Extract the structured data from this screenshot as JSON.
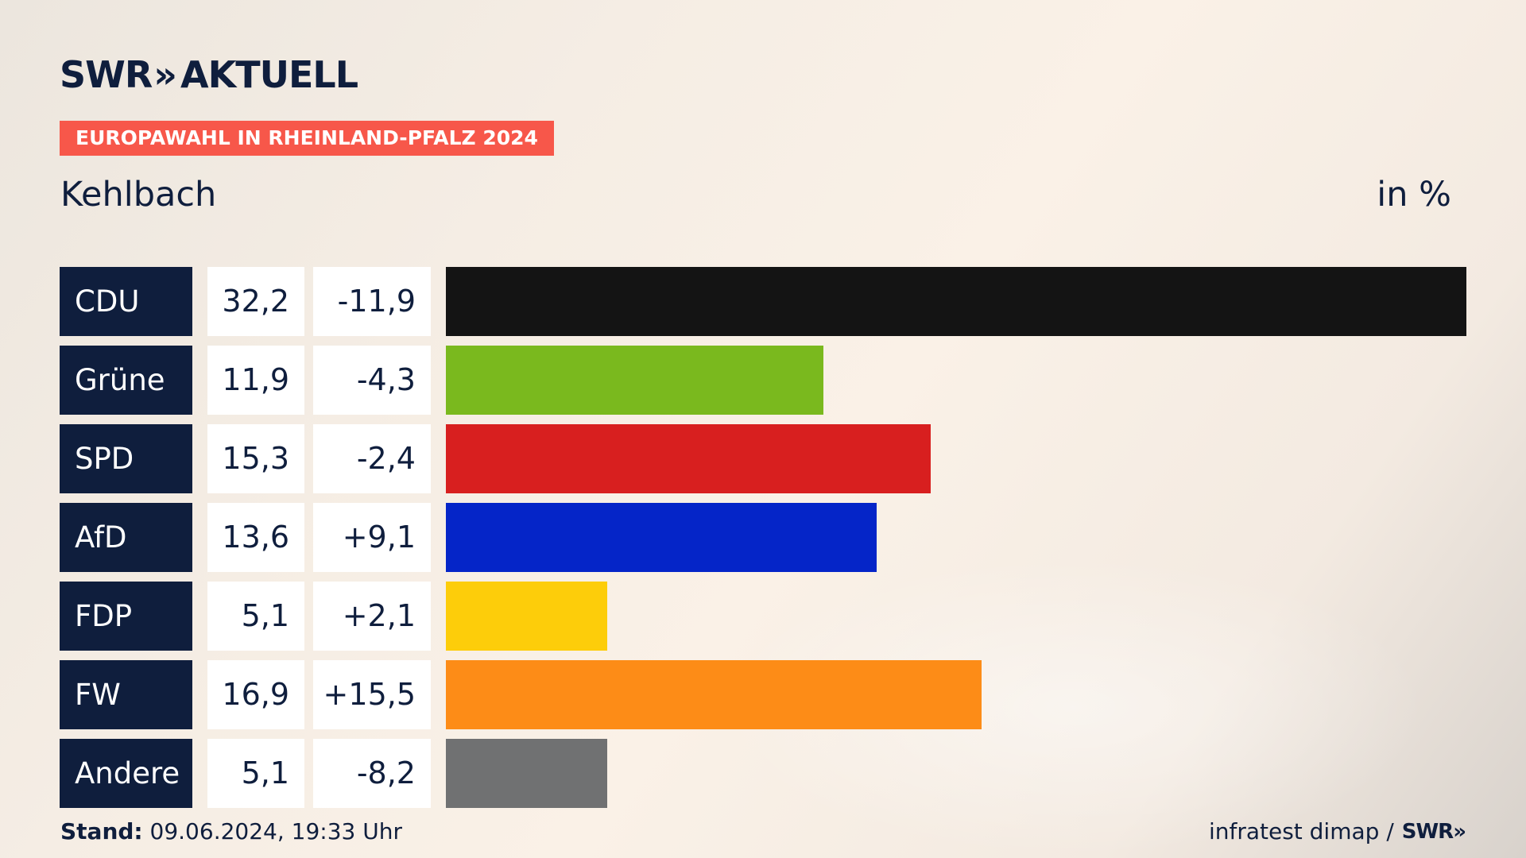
{
  "brand": {
    "name": "SWR",
    "chevrons": "»",
    "product": "AKTUELL"
  },
  "banner": "EUROPAWAHL IN RHEINLAND-PFALZ 2024",
  "region": "Kehlbach",
  "unit": "in %",
  "footer": {
    "stand_label": "Stand:",
    "stand_value": "09.06.2024, 19:33 Uhr",
    "source": "infratest dimap /",
    "source_brand": "SWR»"
  },
  "chart_data": {
    "type": "bar",
    "orientation": "horizontal",
    "categories": [
      "CDU",
      "Grüne",
      "SPD",
      "AfD",
      "FDP",
      "FW",
      "Andere"
    ],
    "values": [
      32.2,
      11.9,
      15.3,
      13.6,
      5.1,
      16.9,
      5.1
    ],
    "value_labels": [
      "32,2",
      "11,9",
      "15,3",
      "13,6",
      "5,1",
      "16,9",
      "5,1"
    ],
    "diff_labels": [
      "-11,9",
      "-4,3",
      "-2,4",
      "+9,1",
      "+2,1",
      "+15,5",
      "-8,2"
    ],
    "colors": [
      "#141414",
      "#7ab91e",
      "#d81f1f",
      "#0525c8",
      "#fdcd0a",
      "#fd8c17",
      "#707172"
    ],
    "xlim": [
      0,
      32.2
    ]
  }
}
